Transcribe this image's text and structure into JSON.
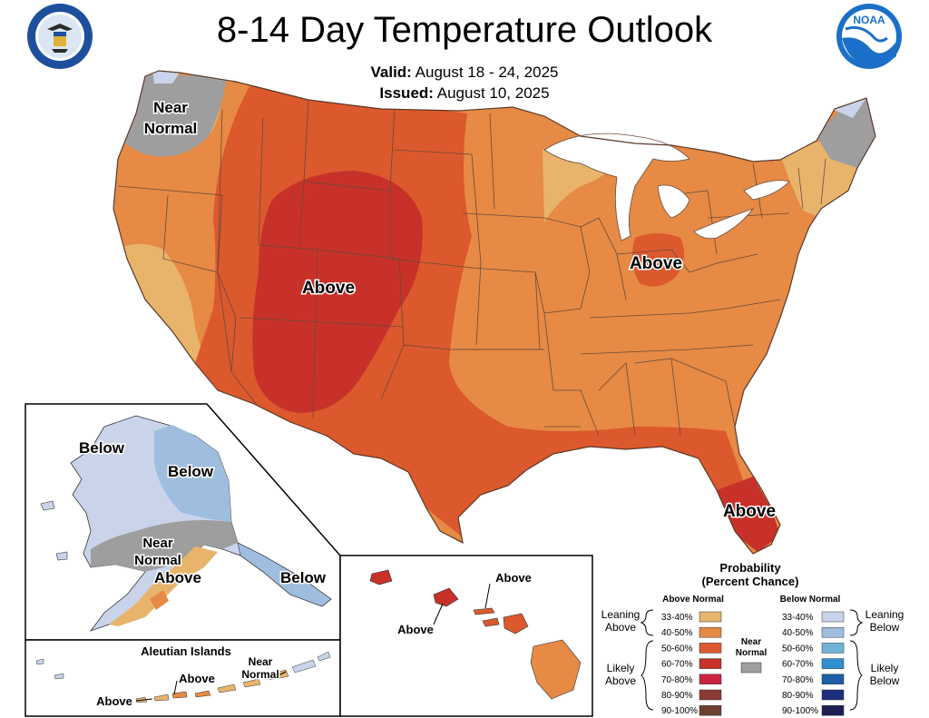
{
  "header": {
    "title": "8-14 Day Temperature Outlook",
    "valid_label": "Valid:",
    "valid_value": "August 18 - 24, 2025",
    "issued_label": "Issued:",
    "issued_value": "August 10, 2025",
    "left_emblem_icon": "department-of-commerce-seal-icon",
    "right_emblem_icon": "noaa-logo-icon"
  },
  "map_labels": {
    "conus_near_normal": [
      "Near",
      "Normal"
    ],
    "conus_above_west": "Above",
    "conus_above_ohio": "Above",
    "conus_above_florida": "Above",
    "alaska_below_west": "Below",
    "alaska_below_central": "Below",
    "alaska_near_normal": [
      "Near",
      "Normal"
    ],
    "alaska_above": "Above",
    "alaska_below_panhandle": "Below",
    "aleutian_title": "Aleutian Islands",
    "aleutian_above_1": "Above",
    "aleutian_above_2": "Above",
    "aleutian_near_normal": [
      "Near",
      "Normal"
    ],
    "hawaii_above_1": "Above",
    "hawaii_above_2": "Above"
  },
  "legend": {
    "title_1": "Probability",
    "title_2": "(Percent Chance)",
    "above_header": "Above Normal",
    "below_header": "Below Normal",
    "near_normal": [
      "Near",
      "Normal"
    ],
    "near_color": "#9e9e9e",
    "leaning_above": [
      "Leaning",
      "Above"
    ],
    "likely_above": [
      "Likely",
      "Above"
    ],
    "leaning_below": [
      "Leaning",
      "Below"
    ],
    "likely_below": [
      "Likely",
      "Below"
    ],
    "above_bins": [
      {
        "label": "33-40%",
        "color": "#e8b46c"
      },
      {
        "label": "40-50%",
        "color": "#e68a45"
      },
      {
        "label": "50-60%",
        "color": "#dc582d"
      },
      {
        "label": "60-70%",
        "color": "#c8312a"
      },
      {
        "label": "70-80%",
        "color": "#cc2340"
      },
      {
        "label": "80-90%",
        "color": "#8c3a35"
      },
      {
        "label": "90-100%",
        "color": "#6b4030"
      }
    ],
    "below_bins": [
      {
        "label": "33-40%",
        "color": "#c9d4ea"
      },
      {
        "label": "40-50%",
        "color": "#9fbedf"
      },
      {
        "label": "50-60%",
        "color": "#6fb3d9"
      },
      {
        "label": "60-70%",
        "color": "#2f8fd1"
      },
      {
        "label": "70-80%",
        "color": "#1e5ea6"
      },
      {
        "label": "80-90%",
        "color": "#1c2f7d"
      },
      {
        "label": "90-100%",
        "color": "#1d1d54"
      }
    ]
  }
}
